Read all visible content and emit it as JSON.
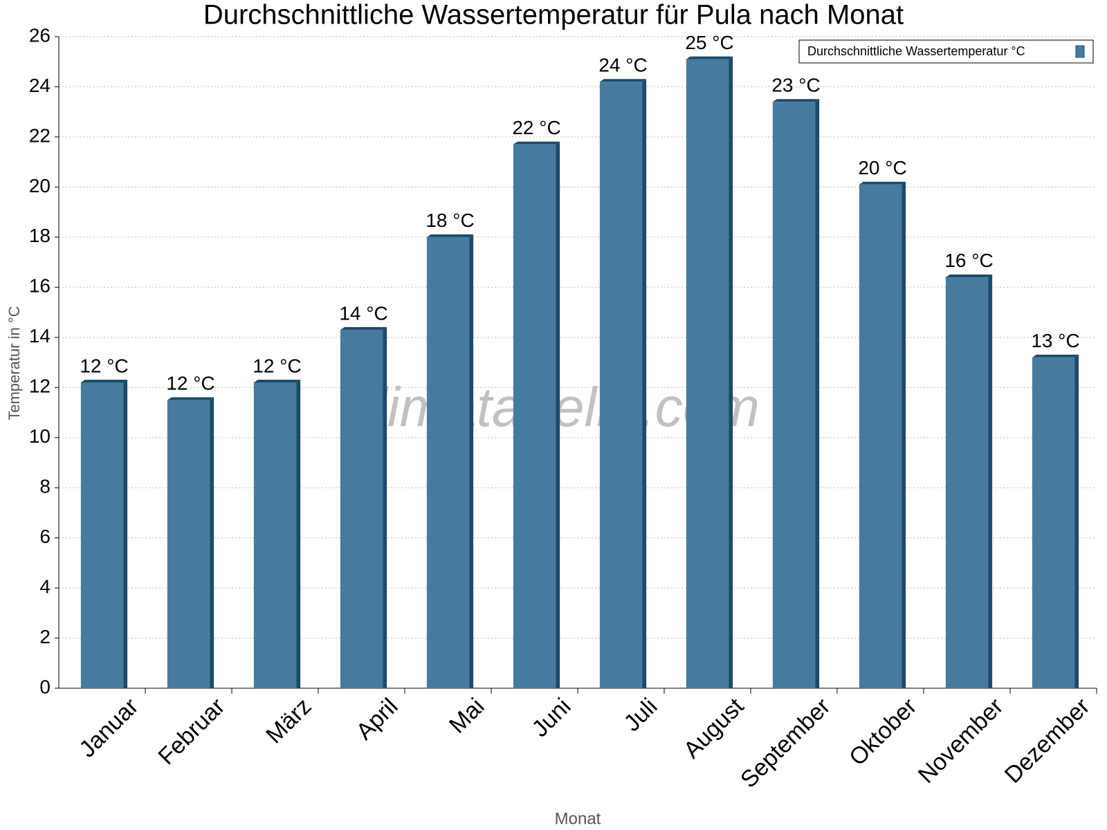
{
  "chart_data": {
    "type": "bar",
    "title": "Durchschnittliche Wassertemperatur für Pula nach Monat",
    "x_label": "Monat",
    "y_label": "Temperatur in °C",
    "watermark": "klimatabelle.com",
    "categories": [
      "Januar",
      "Februar",
      "März",
      "April",
      "Mai",
      "Juni",
      "Juli",
      "August",
      "September",
      "Oktober",
      "November",
      "Dezember"
    ],
    "series": [
      {
        "name": "Durchschnittliche Wassertemperatur °C",
        "color": "#467b9e",
        "values": [
          12.2,
          11.5,
          12.2,
          14.3,
          18.0,
          21.7,
          24.2,
          25.1,
          23.4,
          20.1,
          16.4,
          13.2
        ],
        "value_labels": [
          "12 °C",
          "12 °C",
          "12 °C",
          "14 °C",
          "18 °C",
          "22 °C",
          "24 °C",
          "25 °C",
          "23 °C",
          "20 °C",
          "16 °C",
          "13 °C"
        ]
      }
    ],
    "ylim": [
      0,
      26
    ],
    "yticks": [
      0,
      2,
      4,
      6,
      8,
      10,
      12,
      14,
      16,
      18,
      20,
      22,
      24,
      26
    ],
    "grid": true,
    "legend": "top-right"
  }
}
